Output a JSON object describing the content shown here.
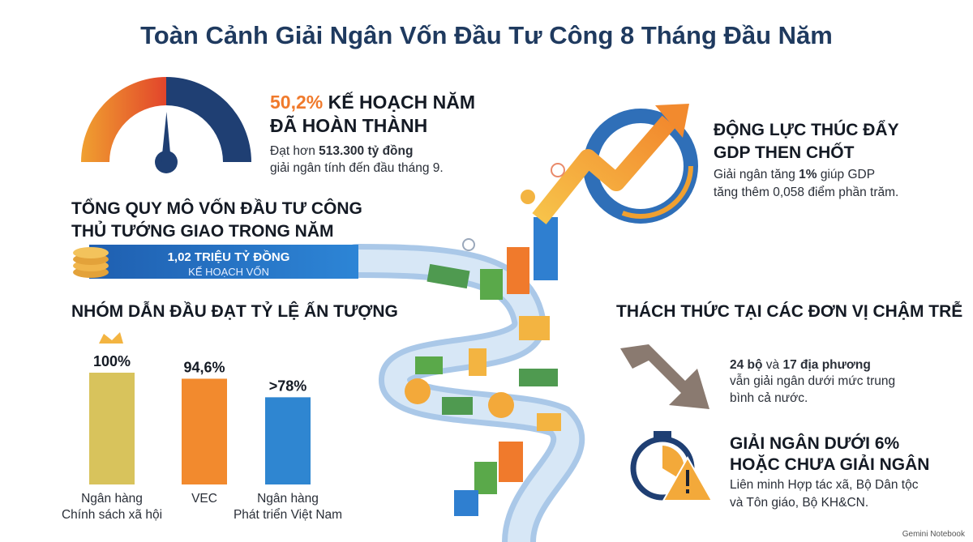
{
  "title": "Toàn Cảnh Giải Ngân Vốn Đầu Tư Công 8 Tháng Đầu Năm",
  "gauge": {
    "value": 50.2,
    "label": "50,2%",
    "heading_rest": " KẾ HOẠCH NĂM",
    "heading_line2": "ĐÃ HOÀN THÀNH",
    "detail_line1": [
      "Đạt hơn ",
      "513.300 tỷ đồng"
    ],
    "detail_line2": "giải ngân tính đến đầu tháng 9."
  },
  "total": {
    "heading_line1": "TỔNG QUY MÔ VỐN ĐẦU TƯ CÔNG",
    "heading_line2": "THỦ TƯỚNG GIAO TRONG NĂM",
    "amount": "1,02 TRIỆU TỶ ĐỒNG",
    "caption": "KẾ HOẠCH VỐN"
  },
  "chart_data": {
    "type": "bar",
    "title": "NHÓM DẪN ĐẦU ĐẠT TỶ LỆ ẤN TƯỢNG",
    "categories": [
      [
        "Ngân hàng",
        "Chính sách xã hội"
      ],
      [
        "VEC"
      ],
      [
        "Ngân hàng",
        "Phát triển Việt Nam"
      ]
    ],
    "values": [
      100,
      94.6,
      78
    ],
    "value_labels": [
      "100%",
      "94,6%",
      ">78%"
    ],
    "colors": [
      "#d8c35c",
      "#f28a2e",
      "#2f86d1"
    ]
  },
  "gdp": {
    "heading_line1": "ĐỘNG LỰC THÚC ĐẨY",
    "heading_line2": "GDP THEN CHỐT",
    "detail_line1": [
      "Giải ngân tăng ",
      "1%",
      " giúp GDP"
    ],
    "detail_line2": "tăng thêm 0,058 điểm phần trăm."
  },
  "challenges": {
    "heading": "THÁCH THỨC TẠI CÁC ĐƠN VỊ CHẬM TRỄ",
    "item1_line1": [
      "24 bộ",
      " và ",
      "17 địa phương"
    ],
    "item1_line2": "vẫn giải ngân dưới mức trung",
    "item1_line3": "bình cả nước.",
    "item2_heading_line1": "GIẢI NGÂN DƯỚI 6%",
    "item2_heading_line2": "HOẶC CHƯA GIẢI NGÂN",
    "item2_line1": "Liên minh Hợp tác xã, Bộ Dân tộc",
    "item2_line2": "và Tôn giáo, Bộ KH&CN."
  },
  "footer": "Gemini Notebook"
}
